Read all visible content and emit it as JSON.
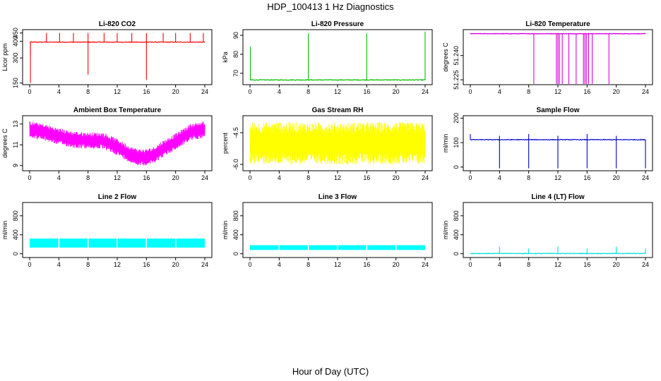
{
  "title": "HDP_100413  1 Hz Diagnostics",
  "xlabel": "Hour of Day (UTC)",
  "chart_data": [
    {
      "type": "line",
      "title": "Li-820 CO2",
      "ylabel": "Licor ppm",
      "color": "#ff0000",
      "xlim": [
        0,
        24
      ],
      "xticks": [
        "0",
        "4",
        "8",
        "12",
        "16",
        "20",
        "24"
      ],
      "ylim": [
        140,
        470
      ],
      "yticks": [
        "150",
        "300",
        "400",
        "450"
      ],
      "yticks_at": [
        150,
        300,
        400,
        450
      ],
      "baseline": 395,
      "spikes": [
        {
          "x": 0.1,
          "y": 150
        },
        {
          "x": 0.1,
          "y": 320
        },
        {
          "x": 2.3,
          "y": 450
        },
        {
          "x": 4.1,
          "y": 450
        },
        {
          "x": 6.0,
          "y": 450
        },
        {
          "x": 8.0,
          "y": 450
        },
        {
          "x": 8.0,
          "y": 200
        },
        {
          "x": 10.2,
          "y": 450
        },
        {
          "x": 12.0,
          "y": 450
        },
        {
          "x": 14.0,
          "y": 450
        },
        {
          "x": 16.0,
          "y": 450
        },
        {
          "x": 16.0,
          "y": 170
        },
        {
          "x": 18.3,
          "y": 450
        },
        {
          "x": 20.0,
          "y": 450
        },
        {
          "x": 22.0,
          "y": 450
        },
        {
          "x": 23.8,
          "y": 450
        }
      ]
    },
    {
      "type": "line",
      "title": "Li-820 Pressure",
      "ylabel": "kPa",
      "color": "#00bb00",
      "xlim": [
        0,
        24
      ],
      "xticks": [
        "0",
        "4",
        "8",
        "12",
        "16",
        "20",
        "24"
      ],
      "ylim": [
        64,
        93
      ],
      "yticks": [
        "70",
        "80",
        "90"
      ],
      "yticks_at": [
        70,
        80,
        90
      ],
      "baseline": 66.5,
      "spikes": [
        {
          "x": 0.05,
          "y": 84
        },
        {
          "x": 8.0,
          "y": 91
        },
        {
          "x": 16.0,
          "y": 91
        },
        {
          "x": 24.0,
          "y": 92
        }
      ]
    },
    {
      "type": "line",
      "title": "Li-820 Temperature",
      "ylabel": "degrees C",
      "color": "#dd00dd",
      "xlim": [
        0,
        24
      ],
      "xticks": [
        "0",
        "4",
        "8",
        "12",
        "16",
        "20",
        "24"
      ],
      "ylim": [
        51.222,
        51.256
      ],
      "yticks": [
        "51.225",
        "51.240"
      ],
      "yticks_at": [
        51.225,
        51.24
      ],
      "baseline": 51.2535,
      "dips_to": 51.2225,
      "dips": [
        8.7,
        11.8,
        12.0,
        12.2,
        12.6,
        13.5,
        14.5,
        15.5,
        15.7,
        15.9,
        16.2,
        16.7,
        19.0
      ]
    },
    {
      "type": "area",
      "title": "Ambient Box Temperature",
      "ylabel": "degrees C",
      "color": "#ff00ff",
      "xlim": [
        0,
        24
      ],
      "xticks": [
        "0",
        "4",
        "8",
        "12",
        "16",
        "20",
        "24"
      ],
      "ylim": [
        8.5,
        13.8
      ],
      "yticks": [
        "9",
        "11",
        "13"
      ],
      "yticks_at": [
        9,
        11,
        13
      ],
      "x": [
        0,
        2,
        4,
        6,
        8,
        10,
        12,
        13,
        14,
        15,
        16,
        17,
        18,
        20,
        22,
        24
      ],
      "center": [
        12.5,
        12.2,
        11.8,
        11.5,
        11.4,
        11.4,
        10.8,
        10.4,
        10.0,
        9.8,
        9.8,
        10.0,
        10.5,
        11.3,
        12.2,
        12.5
      ],
      "amplitude": 0.8
    },
    {
      "type": "area",
      "title": "Gas Stream RH",
      "ylabel": "percent",
      "color": "#ffff00",
      "xlim": [
        0,
        24
      ],
      "xticks": [
        "0",
        "4",
        "8",
        "12",
        "16",
        "20",
        "24"
      ],
      "ylim": [
        -6.3,
        -3.7
      ],
      "yticks": [
        "-6.0",
        "-4.5"
      ],
      "yticks_at": [
        -6.0,
        -4.5
      ],
      "x": [
        0,
        24
      ],
      "center": [
        -5.0,
        -5.0
      ],
      "amplitude": 1.0
    },
    {
      "type": "line",
      "title": "Sample Flow",
      "ylabel": "ml/min",
      "color": "#0000cc",
      "xlim": [
        0,
        24
      ],
      "xticks": [
        "0",
        "4",
        "8",
        "12",
        "16",
        "20",
        "24"
      ],
      "ylim": [
        -15,
        210
      ],
      "yticks": [
        "0",
        "100",
        "200"
      ],
      "yticks_at": [
        0,
        100,
        200
      ],
      "baseline": 112,
      "spikes": [
        {
          "x": 0.0,
          "y": 135
        },
        {
          "x": 4.0,
          "y": -5
        },
        {
          "x": 4.0,
          "y": 128
        },
        {
          "x": 8.0,
          "y": -5
        },
        {
          "x": 8.0,
          "y": 135
        },
        {
          "x": 12.0,
          "y": -5
        },
        {
          "x": 12.0,
          "y": 128
        },
        {
          "x": 16.0,
          "y": -5
        },
        {
          "x": 16.0,
          "y": 135
        },
        {
          "x": 20.0,
          "y": -5
        },
        {
          "x": 20.0,
          "y": 128
        },
        {
          "x": 24.0,
          "y": -5
        }
      ]
    },
    {
      "type": "area",
      "title": "Line 2 Flow",
      "ylabel": "ml/min",
      "color": "#00ffff",
      "xlim": [
        0,
        24
      ],
      "xticks": [
        "0",
        "4",
        "8",
        "12",
        "16",
        "20",
        "24"
      ],
      "ylim": [
        -80,
        1080
      ],
      "yticks": [
        "0",
        "400",
        "800"
      ],
      "yticks_at": [
        0,
        400,
        800
      ],
      "band": [
        130,
        320
      ],
      "gaps": [
        4,
        8,
        12,
        16,
        20
      ]
    },
    {
      "type": "area",
      "title": "Line 3 Flow",
      "ylabel": "ml/min",
      "color": "#00ffff",
      "xlim": [
        0,
        24
      ],
      "xticks": [
        "0",
        "4",
        "8",
        "12",
        "16",
        "20",
        "24"
      ],
      "ylim": [
        -80,
        1080
      ],
      "yticks": [
        "0",
        "400",
        "800"
      ],
      "yticks_at": [
        0,
        400,
        800
      ],
      "band": [
        80,
        180
      ],
      "gaps": [
        4,
        8,
        12,
        16,
        20
      ]
    },
    {
      "type": "line",
      "title": "Line 4 (LT) Flow",
      "ylabel": "ml/min",
      "color": "#00dddd",
      "xlim": [
        0,
        24
      ],
      "xticks": [
        "0",
        "4",
        "8",
        "12",
        "16",
        "20",
        "24"
      ],
      "ylim": [
        -80,
        1080
      ],
      "yticks": [
        "0",
        "400",
        "800"
      ],
      "yticks_at": [
        0,
        400,
        800
      ],
      "baseline": 5,
      "spikes": [
        {
          "x": 4.0,
          "y": 150
        },
        {
          "x": 8.0,
          "y": 110
        },
        {
          "x": 12.0,
          "y": 150
        },
        {
          "x": 16.0,
          "y": 110
        },
        {
          "x": 20.0,
          "y": 150
        },
        {
          "x": 24.0,
          "y": 110
        }
      ]
    }
  ]
}
